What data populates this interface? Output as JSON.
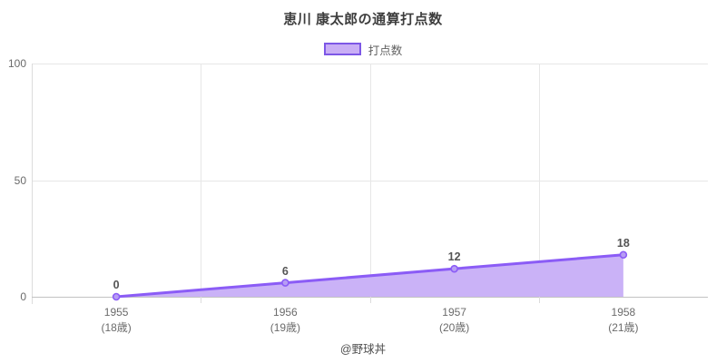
{
  "title": "恵川 康太郎の通算打点数",
  "legend": {
    "label": "打点数"
  },
  "footer": "@野球丼",
  "colors": {
    "line": "#8b5cf6",
    "area_fill": "#cab2f7",
    "marker_fill": "#b79df4",
    "legend_fill": "#c9aef5",
    "legend_border": "#7d57e6"
  },
  "chart_data": {
    "type": "area",
    "title": "恵川 康太郎の通算打点数",
    "series_name": "打点数",
    "categories": [
      "1955",
      "1956",
      "1957",
      "1958"
    ],
    "category_sublabels": [
      "(18歳)",
      "(19歳)",
      "(20歳)",
      "(21歳)"
    ],
    "values": [
      0,
      6,
      12,
      18
    ],
    "point_labels": [
      "0",
      "6",
      "12",
      "18"
    ],
    "yticks": [
      0,
      50,
      100
    ],
    "ylim": [
      0,
      100
    ],
    "xlabel": "",
    "ylabel": "",
    "grid": true,
    "legend_position": "top"
  }
}
